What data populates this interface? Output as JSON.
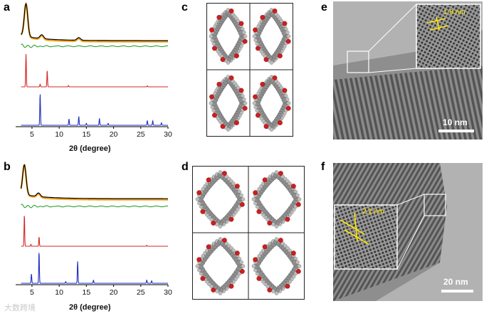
{
  "figure": {
    "panels": [
      {
        "id": "a",
        "label": "a"
      },
      {
        "id": "b",
        "label": "b"
      },
      {
        "id": "c",
        "label": "c"
      },
      {
        "id": "d",
        "label": "d"
      },
      {
        "id": "e",
        "label": "e"
      },
      {
        "id": "f",
        "label": "f"
      }
    ],
    "watermark": "大数跨境",
    "colors": {
      "experimental": "#000000",
      "simulated_fit": "#f5a623",
      "difference": "#2ca02c",
      "calculated_1": "#d62728",
      "calculated_2": "#1f2fbf",
      "annotation": "#ffe600",
      "oxygen": "#cc1f1f",
      "carbon": "#8f8f8f"
    }
  },
  "chart_data": [
    {
      "id": "a",
      "type": "line",
      "xlabel": "2θ (degree)",
      "xticks": [
        5,
        10,
        15,
        20,
        25,
        30
      ],
      "xlim": [
        2,
        30
      ],
      "series": [
        {
          "role": "experimental",
          "peaks": [
            [
              3.9,
              1.0
            ],
            [
              6.8,
              0.12
            ],
            [
              13.6,
              0.08
            ]
          ]
        },
        {
          "role": "difference"
        },
        {
          "role": "calculated_1",
          "peaks": [
            [
              3.9,
              1.0
            ],
            [
              7.8,
              0.5
            ],
            [
              6.5,
              0.08
            ],
            [
              11.7,
              0.04
            ],
            [
              26.2,
              0.03
            ]
          ]
        },
        {
          "role": "calculated_2",
          "peaks": [
            [
              6.5,
              1.0
            ],
            [
              11.8,
              0.2
            ],
            [
              13.6,
              0.28
            ],
            [
              17.4,
              0.22
            ],
            [
              15.0,
              0.06
            ],
            [
              19.0,
              0.06
            ],
            [
              26.2,
              0.15
            ],
            [
              27.2,
              0.14
            ],
            [
              28.8,
              0.08
            ]
          ]
        }
      ]
    },
    {
      "id": "b",
      "type": "line",
      "xlabel": "2θ (degree)",
      "xticks": [
        5,
        10,
        15,
        20,
        25,
        30
      ],
      "xlim": [
        2,
        30
      ],
      "series": [
        {
          "role": "experimental",
          "peaks": [
            [
              3.6,
              1.0
            ],
            [
              6.2,
              0.12
            ]
          ]
        },
        {
          "role": "difference"
        },
        {
          "role": "calculated_1",
          "peaks": [
            [
              3.6,
              1.0
            ],
            [
              6.3,
              0.3
            ],
            [
              4.8,
              0.06
            ],
            [
              26.1,
              0.03
            ]
          ]
        },
        {
          "role": "calculated_2",
          "peaks": [
            [
              6.3,
              1.0
            ],
            [
              4.9,
              0.3
            ],
            [
              13.4,
              0.7
            ],
            [
              16.3,
              0.1
            ],
            [
              26.1,
              0.1
            ],
            [
              27.0,
              0.08
            ],
            [
              11.2,
              0.05
            ]
          ]
        }
      ]
    }
  ],
  "micrographs": {
    "e": {
      "spacing_label": "1.8 nm",
      "scalebar_label": "10 nm"
    },
    "f": {
      "spacing_label": "2.2 nm",
      "scalebar_label": "20 nm"
    }
  }
}
